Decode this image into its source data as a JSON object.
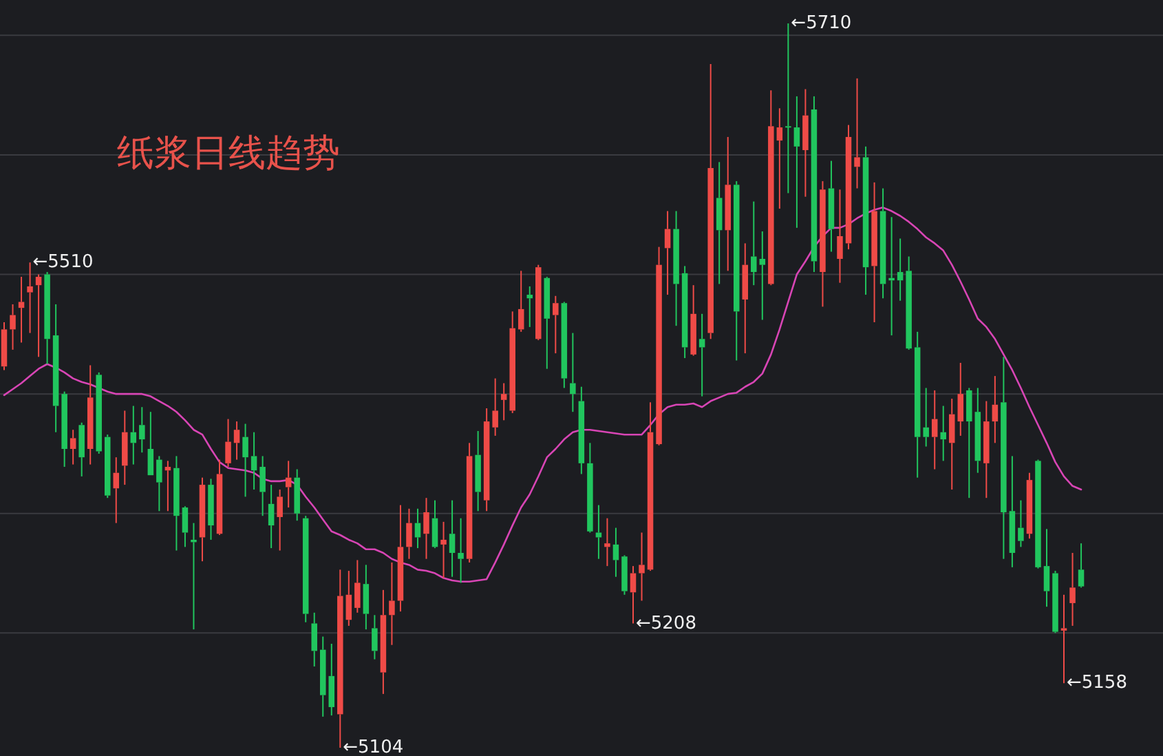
{
  "chart_data": {
    "type": "candlestick",
    "title": "纸浆日线趋势",
    "categories": [
      null,
      null,
      null,
      null,
      null,
      null,
      null,
      null,
      null,
      null,
      null,
      null,
      null,
      null,
      null,
      null,
      null,
      null,
      null,
      null,
      null,
      null,
      null,
      null,
      null,
      null,
      null,
      null,
      null,
      null,
      null,
      null,
      null,
      null,
      null,
      null,
      null,
      null,
      null,
      null,
      null,
      null,
      null,
      null,
      null,
      null,
      null,
      null,
      null,
      null,
      null,
      null,
      null,
      null,
      null,
      null,
      null,
      null,
      null,
      null,
      null,
      null,
      null,
      null,
      null,
      null,
      null,
      null,
      null,
      null,
      null,
      null,
      null,
      null,
      null,
      null,
      null,
      null,
      null,
      null,
      null,
      null,
      null,
      null,
      null,
      null,
      null,
      null,
      null,
      null,
      null,
      null,
      null,
      null,
      null,
      null,
      null,
      null,
      null,
      null,
      null,
      null,
      null,
      null,
      null,
      null,
      null,
      null,
      null,
      null,
      null,
      null,
      null,
      null,
      null,
      null,
      null,
      null,
      null,
      null,
      null,
      null,
      null,
      null,
      null,
      null
    ],
    "ohlc": [
      [
        5423,
        5460,
        5420,
        5454
      ],
      [
        5454,
        5475,
        5437,
        5466
      ],
      [
        5472,
        5498,
        5443,
        5477
      ],
      [
        5485,
        5510,
        5451,
        5490
      ],
      [
        5491,
        5500,
        5431,
        5498
      ],
      [
        5500,
        5502,
        5425,
        5446
      ],
      [
        5449,
        5475,
        5368,
        5390
      ],
      [
        5400,
        5402,
        5339,
        5354
      ],
      [
        5354,
        5370,
        5341,
        5363
      ],
      [
        5374,
        5376,
        5331,
        5347
      ],
      [
        5354,
        5424,
        5341,
        5397
      ],
      [
        5416,
        5418,
        5350,
        5352
      ],
      [
        5364,
        5366,
        5313,
        5315
      ],
      [
        5321,
        5347,
        5292,
        5334
      ],
      [
        5340,
        5386,
        5324,
        5368
      ],
      [
        5368,
        5390,
        5341,
        5359
      ],
      [
        5374,
        5389,
        5351,
        5362
      ],
      [
        5354,
        5385,
        5332,
        5332
      ],
      [
        5345,
        5348,
        5302,
        5326
      ],
      [
        5336,
        5344,
        5302,
        5339
      ],
      [
        5338,
        5348,
        5269,
        5298
      ],
      [
        5305,
        5306,
        5272,
        5284
      ],
      [
        5278,
        5292,
        5203,
        5276
      ],
      [
        5280,
        5330,
        5260,
        5324
      ],
      [
        5324,
        5329,
        5278,
        5290
      ],
      [
        5283,
        5345,
        5282,
        5333
      ],
      [
        5342,
        5379,
        5339,
        5360
      ],
      [
        5359,
        5377,
        5345,
        5370
      ],
      [
        5364,
        5375,
        5314,
        5347
      ],
      [
        5348,
        5368,
        5320,
        5336
      ],
      [
        5339,
        5348,
        5298,
        5318
      ],
      [
        5308,
        5324,
        5271,
        5290
      ],
      [
        5297,
        5320,
        5269,
        5314
      ],
      [
        5322,
        5344,
        5305,
        5330
      ],
      [
        5330,
        5337,
        5294,
        5300
      ],
      [
        5296,
        5298,
        5209,
        5216
      ],
      [
        5208,
        5217,
        5172,
        5185
      ],
      [
        5186,
        5197,
        5130,
        5148
      ],
      [
        5164,
        5191,
        5131,
        5138
      ],
      [
        5132,
        5253,
        5104,
        5231
      ],
      [
        5211,
        5252,
        5206,
        5232
      ],
      [
        5221,
        5261,
        5217,
        5242
      ],
      [
        5241,
        5257,
        5203,
        5216
      ],
      [
        5204,
        5215,
        5178,
        5185
      ],
      [
        5167,
        5236,
        5149,
        5215
      ],
      [
        5215,
        5259,
        5190,
        5227
      ],
      [
        5227,
        5307,
        5218,
        5272
      ],
      [
        5272,
        5304,
        5262,
        5292
      ],
      [
        5292,
        5304,
        5271,
        5280
      ],
      [
        5283,
        5313,
        5262,
        5301
      ],
      [
        5296,
        5311,
        5271,
        5272
      ],
      [
        5274,
        5293,
        5246,
        5278
      ],
      [
        5283,
        5311,
        5247,
        5267
      ],
      [
        5267,
        5296,
        5242,
        5262
      ],
      [
        5262,
        5359,
        5259,
        5348
      ],
      [
        5349,
        5369,
        5302,
        5318
      ],
      [
        5311,
        5388,
        5302,
        5377
      ],
      [
        5372,
        5413,
        5365,
        5386
      ],
      [
        5395,
        5409,
        5378,
        5400
      ],
      [
        5386,
        5469,
        5384,
        5455
      ],
      [
        5454,
        5503,
        5452,
        5471
      ],
      [
        5483,
        5490,
        5456,
        5480
      ],
      [
        5446,
        5508,
        5445,
        5506
      ],
      [
        5497,
        5498,
        5421,
        5463
      ],
      [
        5466,
        5482,
        5434,
        5476
      ],
      [
        5476,
        5477,
        5405,
        5413
      ],
      [
        5409,
        5451,
        5385,
        5400
      ],
      [
        5394,
        5406,
        5333,
        5342
      ],
      [
        5342,
        5359,
        5284,
        5285
      ],
      [
        5284,
        5307,
        5262,
        5280
      ],
      [
        5272,
        5296,
        5256,
        5275
      ],
      [
        5274,
        5288,
        5247,
        5261
      ],
      [
        5264,
        5265,
        5232,
        5235
      ],
      [
        5234,
        5256,
        5208,
        5250
      ],
      [
        5250,
        5284,
        5227,
        5257
      ],
      [
        5253,
        5393,
        5252,
        5368
      ],
      [
        5358,
        5523,
        5357,
        5508
      ],
      [
        5522,
        5553,
        5483,
        5538
      ],
      [
        5538,
        5553,
        5457,
        5492
      ],
      [
        5501,
        5507,
        5430,
        5439
      ],
      [
        5433,
        5491,
        5432,
        5467
      ],
      [
        5446,
        5467,
        5398,
        5439
      ],
      [
        5451,
        5676,
        5446,
        5589
      ],
      [
        5564,
        5594,
        5492,
        5537
      ],
      [
        5537,
        5615,
        5503,
        5575
      ],
      [
        5575,
        5578,
        5428,
        5469
      ],
      [
        5479,
        5526,
        5434,
        5508
      ],
      [
        5515,
        5561,
        5491,
        5502
      ],
      [
        5513,
        5536,
        5462,
        5508
      ],
      [
        5492,
        5654,
        5491,
        5624
      ],
      [
        5612,
        5639,
        5555,
        5623
      ],
      [
        5624,
        5710,
        5568,
        5623
      ],
      [
        5623,
        5649,
        5539,
        5607
      ],
      [
        5604,
        5655,
        5565,
        5633
      ],
      [
        5638,
        5649,
        5502,
        5511
      ],
      [
        5502,
        5578,
        5473,
        5571
      ],
      [
        5572,
        5595,
        5519,
        5538
      ],
      [
        5513,
        5571,
        5493,
        5532
      ],
      [
        5526,
        5625,
        5521,
        5615
      ],
      [
        5590,
        5664,
        5572,
        5598
      ],
      [
        5598,
        5607,
        5483,
        5506
      ],
      [
        5507,
        5577,
        5460,
        5553
      ],
      [
        5553,
        5572,
        5480,
        5492
      ],
      [
        5497,
        5548,
        5449,
        5495
      ],
      [
        5502,
        5530,
        5478,
        5495
      ],
      [
        5503,
        5515,
        5437,
        5438
      ],
      [
        5439,
        5452,
        5330,
        5364
      ],
      [
        5372,
        5405,
        5356,
        5364
      ],
      [
        5364,
        5403,
        5337,
        5379
      ],
      [
        5368,
        5390,
        5344,
        5362
      ],
      [
        5359,
        5396,
        5320,
        5383
      ],
      [
        5377,
        5426,
        5365,
        5400
      ],
      [
        5403,
        5405,
        5313,
        5377
      ],
      [
        5385,
        5405,
        5334,
        5344
      ],
      [
        5342,
        5394,
        5313,
        5377
      ],
      [
        5377,
        5415,
        5359,
        5391
      ],
      [
        5393,
        5431,
        5262,
        5301
      ],
      [
        5302,
        5348,
        5255,
        5267
      ],
      [
        5288,
        5311,
        5272,
        5277
      ],
      [
        5283,
        5334,
        5279,
        5328
      ],
      [
        5344,
        5345,
        5254,
        5255
      ],
      [
        5256,
        5287,
        5222,
        5235
      ],
      [
        5250,
        5252,
        5200,
        5201
      ],
      [
        5202,
        5232,
        5158,
        5204
      ],
      [
        5225,
        5267,
        5206,
        5238
      ],
      [
        5253,
        5275,
        5238,
        5239
      ]
    ],
    "colors": [
      "#ef4b47",
      "#ef4b47",
      "#ef4b47",
      "#ef4b47",
      "#ef4b47",
      "#21c65e",
      "#21c65e",
      "#21c65e",
      "#ef4b47",
      "#21c65e",
      "#ef4b47",
      "#21c65e",
      "#21c65e",
      "#ef4b47",
      "#ef4b47",
      "#21c65e",
      "#21c65e",
      "#21c65e",
      "#21c65e",
      "#ef4b47",
      "#21c65e",
      "#21c65e",
      "#21c65e",
      "#ef4b47",
      "#21c65e",
      "#ef4b47",
      "#ef4b47",
      "#ef4b47",
      "#21c65e",
      "#21c65e",
      "#21c65e",
      "#21c65e",
      "#ef4b47",
      "#ef4b47",
      "#21c65e",
      "#21c65e",
      "#21c65e",
      "#21c65e",
      "#21c65e",
      "#ef4b47",
      "#ef4b47",
      "#ef4b47",
      "#21c65e",
      "#21c65e",
      "#ef4b47",
      "#ef4b47",
      "#ef4b47",
      "#ef4b47",
      "#21c65e",
      "#ef4b47",
      "#21c65e",
      "#ef4b47",
      "#21c65e",
      "#21c65e",
      "#ef4b47",
      "#21c65e",
      "#ef4b47",
      "#ef4b47",
      "#ef4b47",
      "#ef4b47",
      "#ef4b47",
      "#21c65e",
      "#ef4b47",
      "#21c65e",
      "#ef4b47",
      "#21c65e",
      "#21c65e",
      "#21c65e",
      "#21c65e",
      "#21c65e",
      "#ef4b47",
      "#21c65e",
      "#21c65e",
      "#ef4b47",
      "#ef4b47",
      "#ef4b47",
      "#ef4b47",
      "#ef4b47",
      "#21c65e",
      "#21c65e",
      "#ef4b47",
      "#21c65e",
      "#ef4b47",
      "#21c65e",
      "#ef4b47",
      "#21c65e",
      "#ef4b47",
      "#21c65e",
      "#21c65e",
      "#ef4b47",
      "#ef4b47",
      "#21c65e",
      "#21c65e",
      "#ef4b47",
      "#21c65e",
      "#ef4b47",
      "#21c65e",
      "#ef4b47",
      "#ef4b47",
      "#ef4b47",
      "#21c65e",
      "#ef4b47",
      "#21c65e",
      "#21c65e",
      "#21c65e",
      "#21c65e",
      "#21c65e",
      "#21c65e",
      "#ef4b47",
      "#21c65e",
      "#ef4b47",
      "#ef4b47",
      "#21c65e",
      "#21c65e",
      "#ef4b47",
      "#ef4b47",
      "#21c65e",
      "#21c65e",
      "#21c65e",
      "#ef4b47",
      "#21c65e",
      "#21c65e",
      "#21c65e",
      "#ef4b47",
      "#ef4b47",
      "#21c65e"
    ],
    "series": [
      {
        "type": "line",
        "color": "#d845b5",
        "values": [
          5399,
          5404,
          5409,
          5415,
          5421,
          5425,
          5422,
          5418,
          5413,
          5410,
          5408,
          5405,
          5402,
          5400,
          5400,
          5400,
          5400,
          5398,
          5394,
          5390,
          5385,
          5378,
          5370,
          5366,
          5354,
          5343,
          5338,
          5337,
          5336,
          5334,
          5329,
          5327,
          5327,
          5328,
          5324,
          5314,
          5305,
          5295,
          5285,
          5282,
          5278,
          5275,
          5270,
          5270,
          5267,
          5262,
          5259,
          5257,
          5253,
          5252,
          5250,
          5246,
          5244,
          5243,
          5243,
          5244,
          5245,
          5259,
          5274,
          5290,
          5305,
          5316,
          5331,
          5347,
          5354,
          5362,
          5368,
          5370,
          5370,
          5369,
          5368,
          5367,
          5366,
          5366,
          5366,
          5374,
          5383,
          5389,
          5391,
          5391,
          5392,
          5389,
          5394,
          5397,
          5400,
          5401,
          5406,
          5410,
          5417,
          5433,
          5454,
          5477,
          5500,
          5511,
          5523,
          5532,
          5539,
          5539,
          5542,
          5547,
          5551,
          5554,
          5556,
          5553,
          5549,
          5544,
          5538,
          5531,
          5526,
          5520,
          5508,
          5494,
          5479,
          5463,
          5456,
          5446,
          5433,
          5420,
          5405,
          5389,
          5374,
          5359,
          5343,
          5331,
          5323,
          5320
        ]
      }
    ],
    "yticks": [
      {
        "value": 5200,
        "label": null
      },
      {
        "value": 5300,
        "label": null
      },
      {
        "value": 5400,
        "label": null
      },
      {
        "value": 5500,
        "label": null
      },
      {
        "value": 5600,
        "label": null
      },
      {
        "value": 5700,
        "label": null
      }
    ],
    "grid": "y",
    "tick_labels": false,
    "annotations": [
      "←5510",
      "←5710",
      "←5208",
      "←5104",
      "←5158"
    ]
  }
}
